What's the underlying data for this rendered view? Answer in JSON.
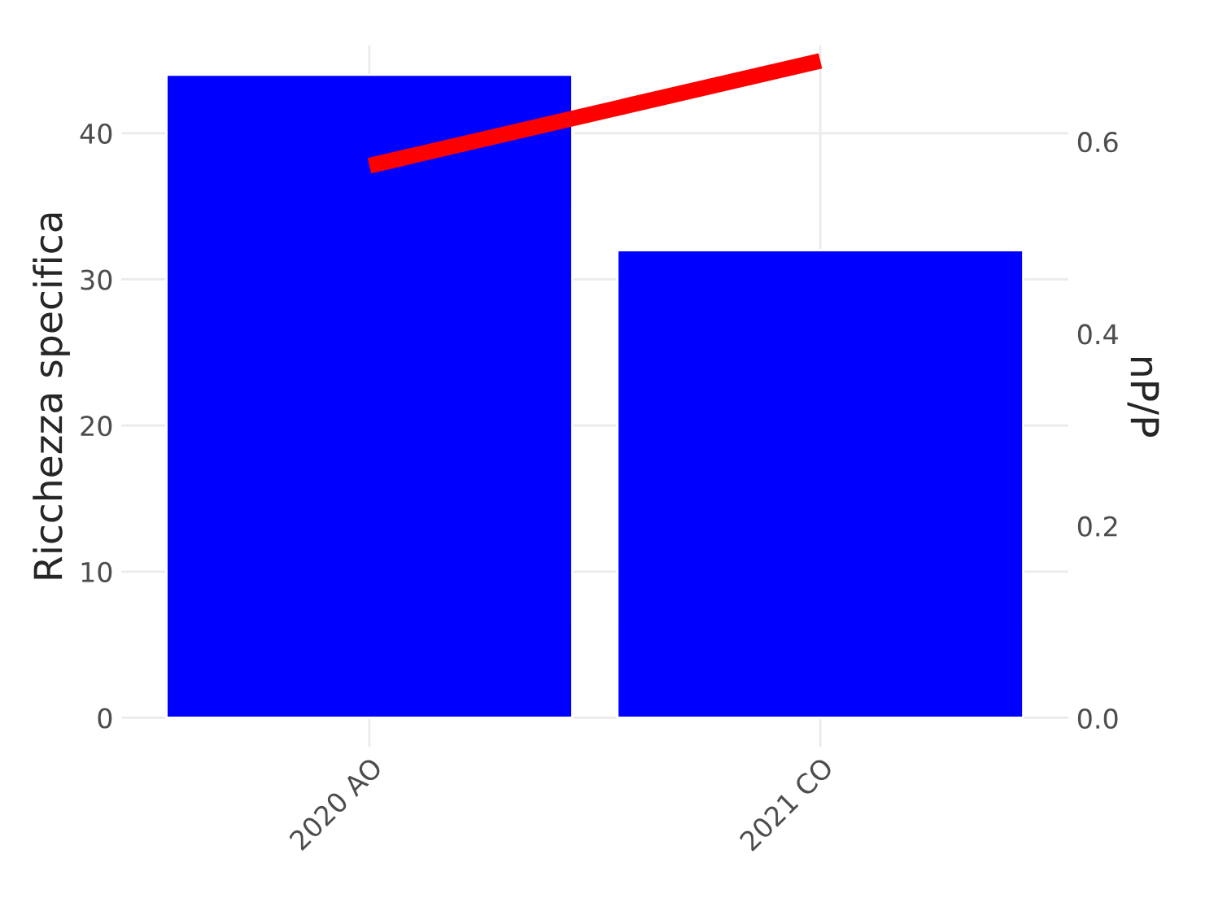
{
  "chart_data": {
    "type": "bar",
    "categories": [
      "2020 AO",
      "2021 CO"
    ],
    "ylabel": "Ricchezza specifica",
    "y2label": "nP/P",
    "ylim": [
      -2,
      46
    ],
    "yticks": [
      0,
      10,
      20,
      30,
      40
    ],
    "y2lim": [
      -0.03,
      0.7
    ],
    "y2ticks": [
      {
        "value": 0,
        "label": "0.0"
      },
      0.2,
      0.4,
      0.6
    ],
    "grid": true,
    "series": [
      {
        "color": "#0000ff",
        "values": [
          44,
          32
        ]
      },
      {
        "type": "line",
        "axis": "y2",
        "color": "#ff0000",
        "values": [
          0.575,
          0.684
        ]
      }
    ]
  }
}
